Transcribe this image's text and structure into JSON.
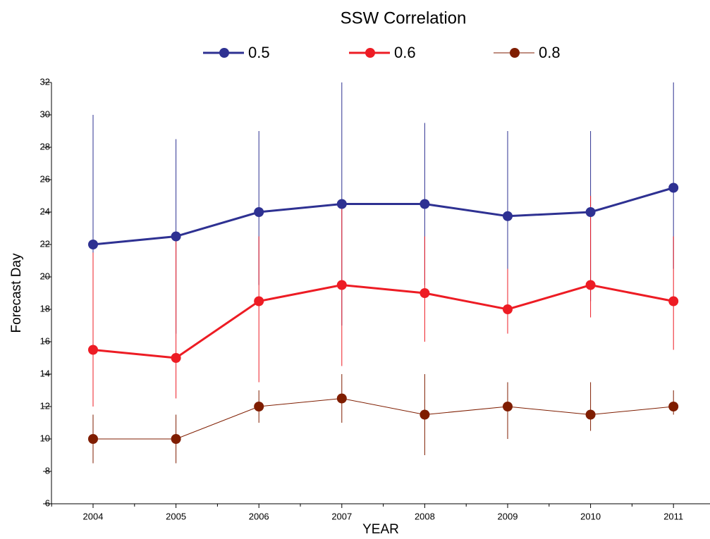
{
  "chart_data": {
    "type": "line",
    "legend_title": "SSW Correlation",
    "x_label": "YEAR",
    "y_label": "Forecast Day",
    "categories": [
      "2004",
      "2005",
      "2006",
      "2007",
      "2008",
      "2009",
      "2010",
      "2011"
    ],
    "ylim": [
      6,
      32
    ],
    "yticks": [
      6,
      8,
      10,
      12,
      14,
      16,
      18,
      20,
      22,
      24,
      26,
      28,
      30,
      32
    ],
    "legend": "top",
    "series": [
      {
        "name": "0.5",
        "color": "#2e3192",
        "width": 3,
        "values": [
          22,
          22.5,
          24,
          24.5,
          24.5,
          23.75,
          24,
          25.5
        ],
        "low": [
          17.5,
          16.5,
          19.5,
          17,
          19.5,
          18,
          18.5,
          20.5
        ],
        "high": [
          30,
          28.5,
          29,
          32,
          29.5,
          29,
          29,
          32
        ]
      },
      {
        "name": "0.6",
        "color": "#ed1c24",
        "width": 3,
        "values": [
          15.5,
          15,
          18.5,
          19.5,
          19,
          18,
          19.5,
          18.5
        ],
        "low": [
          12,
          12.5,
          13.5,
          14.5,
          16,
          16.5,
          17.5,
          15.5
        ],
        "high": [
          21.5,
          22.5,
          22.5,
          24.5,
          22.5,
          20.5,
          25,
          22.5
        ]
      },
      {
        "name": "0.8",
        "color": "#7f1d00",
        "width": 1,
        "values": [
          10,
          10,
          12,
          12.5,
          11.5,
          12,
          11.5,
          12
        ],
        "low": [
          8.5,
          8.5,
          11,
          11,
          9,
          10,
          10.5,
          11.5
        ],
        "high": [
          11.5,
          11.5,
          13,
          14,
          14,
          13.5,
          13.5,
          13
        ]
      }
    ]
  }
}
